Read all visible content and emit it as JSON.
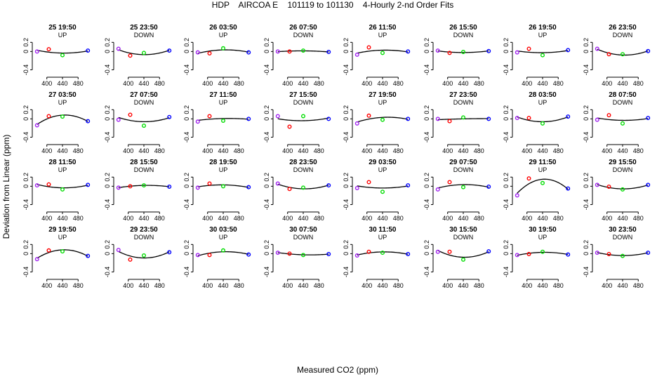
{
  "title": "HDP    AIRCOA E    101119 to 101130    4-Hourly 2-nd Order Fits",
  "xlabel": "Measured CO2 (ppm)",
  "ylabel": "Deviation from Linear (ppm)",
  "colors": {
    "point_1": "#a020f0",
    "point_2": "#ff0000",
    "point_3": "#00dd00",
    "point_4": "#0000ff",
    "curve": "#000000"
  },
  "chart_data": {
    "type": "scatter",
    "layout": "small-multiples 4 rows x 8 columns",
    "xlim": [
      370,
      510
    ],
    "ylim": [
      -0.5,
      0.45
    ],
    "x_ticks": [
      400,
      440,
      480
    ],
    "x_tick_labels": [
      "400",
      "440",
      "480"
    ],
    "y_ticks": [
      -0.4,
      0,
      0.2
    ],
    "y_tick_labels": [
      "-0.4",
      "0",
      "0.2"
    ],
    "grid": false,
    "fit": "2nd order polynomial",
    "point_x": [
      375,
      405,
      440,
      505
    ],
    "panels": [
      {
        "title": "25 19:50",
        "subtitle": "UP",
        "y": [
          0.0,
          0.05,
          -0.08,
          0.02
        ]
      },
      {
        "title": "25 23:50",
        "subtitle": "DOWN",
        "y": [
          0.06,
          -0.09,
          -0.03,
          0.02
        ]
      },
      {
        "title": "26 03:50",
        "subtitle": "UP",
        "y": [
          -0.02,
          -0.04,
          0.07,
          -0.02
        ]
      },
      {
        "title": "26 07:50",
        "subtitle": "DOWN",
        "y": [
          0.0,
          0.0,
          0.02,
          -0.01
        ]
      },
      {
        "title": "26 11:50",
        "subtitle": "UP",
        "y": [
          -0.07,
          0.09,
          -0.03,
          0.0
        ]
      },
      {
        "title": "26 15:50",
        "subtitle": "DOWN",
        "y": [
          0.02,
          -0.03,
          -0.01,
          0.01
        ]
      },
      {
        "title": "26 19:50",
        "subtitle": "UP",
        "y": [
          -0.02,
          0.06,
          -0.08,
          0.03
        ]
      },
      {
        "title": "26 23:50",
        "subtitle": "DOWN",
        "y": [
          0.06,
          -0.06,
          -0.06,
          0.01
        ]
      },
      {
        "title": "27 03:50",
        "subtitle": "UP",
        "y": [
          -0.14,
          0.06,
          0.05,
          -0.05
        ]
      },
      {
        "title": "27 07:50",
        "subtitle": "DOWN",
        "y": [
          -0.02,
          0.09,
          -0.15,
          0.04
        ]
      },
      {
        "title": "27 11:50",
        "subtitle": "UP",
        "y": [
          -0.06,
          0.06,
          -0.04,
          0.0
        ]
      },
      {
        "title": "27 15:50",
        "subtitle": "DOWN",
        "y": [
          0.06,
          -0.17,
          0.06,
          0.0
        ]
      },
      {
        "title": "27 19:50",
        "subtitle": "UP",
        "y": [
          -0.1,
          0.07,
          -0.02,
          0.0
        ]
      },
      {
        "title": "27 23:50",
        "subtitle": "DOWN",
        "y": [
          0.0,
          -0.05,
          0.03,
          0.0
        ]
      },
      {
        "title": "28 03:50",
        "subtitle": "UP",
        "y": [
          0.02,
          0.02,
          -0.1,
          0.05
        ]
      },
      {
        "title": "28 07:50",
        "subtitle": "DOWN",
        "y": [
          -0.02,
          0.08,
          -0.1,
          0.02
        ]
      },
      {
        "title": "28 11:50",
        "subtitle": "UP",
        "y": [
          0.02,
          0.04,
          -0.07,
          0.03
        ]
      },
      {
        "title": "28 15:50",
        "subtitle": "DOWN",
        "y": [
          -0.03,
          0.0,
          0.02,
          -0.01
        ]
      },
      {
        "title": "28 19:50",
        "subtitle": "UP",
        "y": [
          -0.03,
          0.06,
          0.0,
          -0.02
        ]
      },
      {
        "title": "28 23:50",
        "subtitle": "DOWN",
        "y": [
          0.06,
          -0.06,
          -0.03,
          0.02
        ]
      },
      {
        "title": "29 03:50",
        "subtitle": "UP",
        "y": [
          -0.04,
          0.09,
          -0.12,
          0.02
        ]
      },
      {
        "title": "29 07:50",
        "subtitle": "DOWN",
        "y": [
          -0.07,
          0.09,
          -0.02,
          -0.01
        ]
      },
      {
        "title": "29 11:50",
        "subtitle": "UP",
        "y": [
          -0.2,
          0.17,
          0.07,
          -0.05
        ]
      },
      {
        "title": "29 15:50",
        "subtitle": "DOWN",
        "y": [
          0.03,
          -0.01,
          -0.07,
          0.03
        ]
      },
      {
        "title": "29 19:50",
        "subtitle": "UP",
        "y": [
          -0.12,
          0.07,
          0.05,
          -0.05
        ]
      },
      {
        "title": "29 23:50",
        "subtitle": "DOWN",
        "y": [
          0.08,
          -0.13,
          -0.04,
          0.03
        ]
      },
      {
        "title": "30 03:50",
        "subtitle": "UP",
        "y": [
          -0.03,
          -0.03,
          0.07,
          -0.02
        ]
      },
      {
        "title": "30 07:50",
        "subtitle": "DOWN",
        "y": [
          0.02,
          0.0,
          -0.03,
          -0.01
        ]
      },
      {
        "title": "30 11:50",
        "subtitle": "UP",
        "y": [
          -0.04,
          0.04,
          0.02,
          -0.01
        ]
      },
      {
        "title": "30 15:50",
        "subtitle": "DOWN",
        "y": [
          0.04,
          0.04,
          -0.13,
          0.05
        ]
      },
      {
        "title": "30 19:50",
        "subtitle": "UP",
        "y": [
          -0.03,
          -0.01,
          0.04,
          -0.02
        ]
      },
      {
        "title": "30 23:50",
        "subtitle": "DOWN",
        "y": [
          0.02,
          -0.01,
          -0.05,
          0.02
        ]
      }
    ]
  }
}
